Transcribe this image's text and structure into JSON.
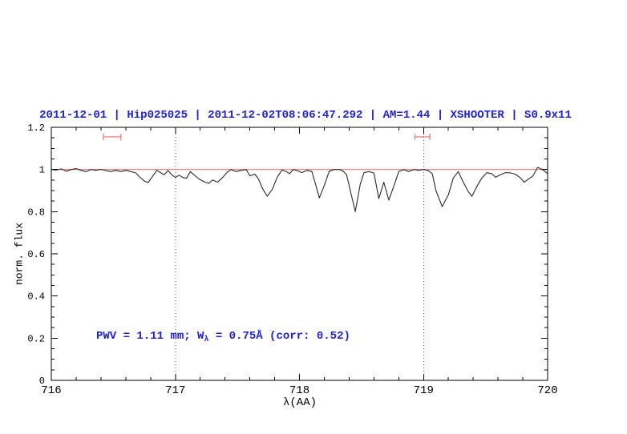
{
  "chart_data": {
    "type": "line",
    "title": "2011-12-01 | Hip025025 | 2011-12-02T08:06:47.292 | AM=1.44 | XSHOOTER | S0.9x11",
    "xlabel": "λ(AA)",
    "ylabel": "norm. flux",
    "xlim": [
      716,
      720
    ],
    "ylim": [
      0,
      1.2
    ],
    "xticks": [
      716,
      717,
      718,
      719,
      720
    ],
    "xtick_labels": [
      "716",
      "717",
      "718",
      "719",
      "720"
    ],
    "yticks": [
      0,
      0.2,
      0.4,
      0.6,
      0.8,
      1,
      1.2
    ],
    "ytick_labels": [
      "0",
      "0.2",
      "0.4",
      "0.6",
      "0.8",
      "1",
      "1.2"
    ],
    "x_minor_step": 0.2,
    "y_minor_step": 0.05,
    "grid": false,
    "legend": "none",
    "colors": {
      "accent_blue": "#2222cc",
      "continuum_red": "#ee7b7b",
      "spectrum_black": "#2a2a2a",
      "guide_gray": "#555555"
    },
    "annotation": {
      "part1": "PWV = 1.11 mm; W",
      "sub": "λ",
      "part2": " = 0.75Å (corr: 0.52)"
    },
    "vlines": [
      {
        "x": 717,
        "style": "dotted"
      },
      {
        "x": 719,
        "style": "dotted"
      }
    ],
    "range_markers": [
      {
        "x1": 716.42,
        "x2": 716.56,
        "y": 1.155,
        "color": "#ee7b7b"
      },
      {
        "x1": 718.93,
        "x2": 719.05,
        "y": 1.155,
        "color": "#ee7b7b"
      }
    ],
    "series": [
      {
        "name": "continuum",
        "color": "#ee7b7b",
        "x": [
          716,
          720
        ],
        "y": [
          1,
          1
        ]
      },
      {
        "name": "spectrum",
        "color": "#2a2a2a",
        "x": [
          716.0,
          716.04,
          716.08,
          716.12,
          716.16,
          716.2,
          716.24,
          716.28,
          716.32,
          716.36,
          716.4,
          716.44,
          716.48,
          716.52,
          716.56,
          716.6,
          716.64,
          716.68,
          716.72,
          716.75,
          716.78,
          716.81,
          716.85,
          716.88,
          716.91,
          716.94,
          716.97,
          717.0,
          717.03,
          717.06,
          717.09,
          717.12,
          717.15,
          717.19,
          717.23,
          717.27,
          717.3,
          717.34,
          717.38,
          717.42,
          717.45,
          717.49,
          717.53,
          717.57,
          717.6,
          717.64,
          717.67,
          717.7,
          717.74,
          717.78,
          717.82,
          717.86,
          717.9,
          717.92,
          717.95,
          717.98,
          718.02,
          718.06,
          718.1,
          718.13,
          718.16,
          718.2,
          718.24,
          718.28,
          718.32,
          718.35,
          718.38,
          718.41,
          718.45,
          718.49,
          718.52,
          718.56,
          718.6,
          718.64,
          718.68,
          718.72,
          718.76,
          718.8,
          718.84,
          718.88,
          718.92,
          718.96,
          719.0,
          719.04,
          719.07,
          719.1,
          719.15,
          719.2,
          719.24,
          719.28,
          719.32,
          719.36,
          719.39,
          719.43,
          719.47,
          719.51,
          719.55,
          719.58,
          719.62,
          719.66,
          719.7,
          719.74,
          719.78,
          719.81,
          719.84,
          719.88,
          719.92,
          719.96,
          720.0
        ],
        "y": [
          1.0,
          0.997,
          1.003,
          0.992,
          1.0,
          1.004,
          0.996,
          0.99,
          1.0,
          0.996,
          1.001,
          0.995,
          0.99,
          0.996,
          0.99,
          0.996,
          0.99,
          0.984,
          0.96,
          0.945,
          0.938,
          0.962,
          0.996,
          0.985,
          0.975,
          0.995,
          0.976,
          0.962,
          0.973,
          0.962,
          0.958,
          0.99,
          0.975,
          0.955,
          0.942,
          0.934,
          0.95,
          0.94,
          0.962,
          0.988,
          1.0,
          0.99,
          0.996,
          1.0,
          0.97,
          0.978,
          0.955,
          0.912,
          0.873,
          0.905,
          0.962,
          0.998,
          0.988,
          0.98,
          1.0,
          0.995,
          0.985,
          0.996,
          0.99,
          0.93,
          0.865,
          0.925,
          0.992,
          1.0,
          1.0,
          0.993,
          0.975,
          0.9,
          0.8,
          0.93,
          0.985,
          0.99,
          0.983,
          0.862,
          0.94,
          0.855,
          0.92,
          0.99,
          1.0,
          0.99,
          1.0,
          0.996,
          1.0,
          0.994,
          0.98,
          0.9,
          0.824,
          0.88,
          0.96,
          0.99,
          0.94,
          0.895,
          0.873,
          0.92,
          0.96,
          0.985,
          0.98,
          0.963,
          0.975,
          0.985,
          0.984,
          0.978,
          0.96,
          0.94,
          0.952,
          0.968,
          1.01,
          1.0,
          0.98
        ]
      }
    ]
  }
}
